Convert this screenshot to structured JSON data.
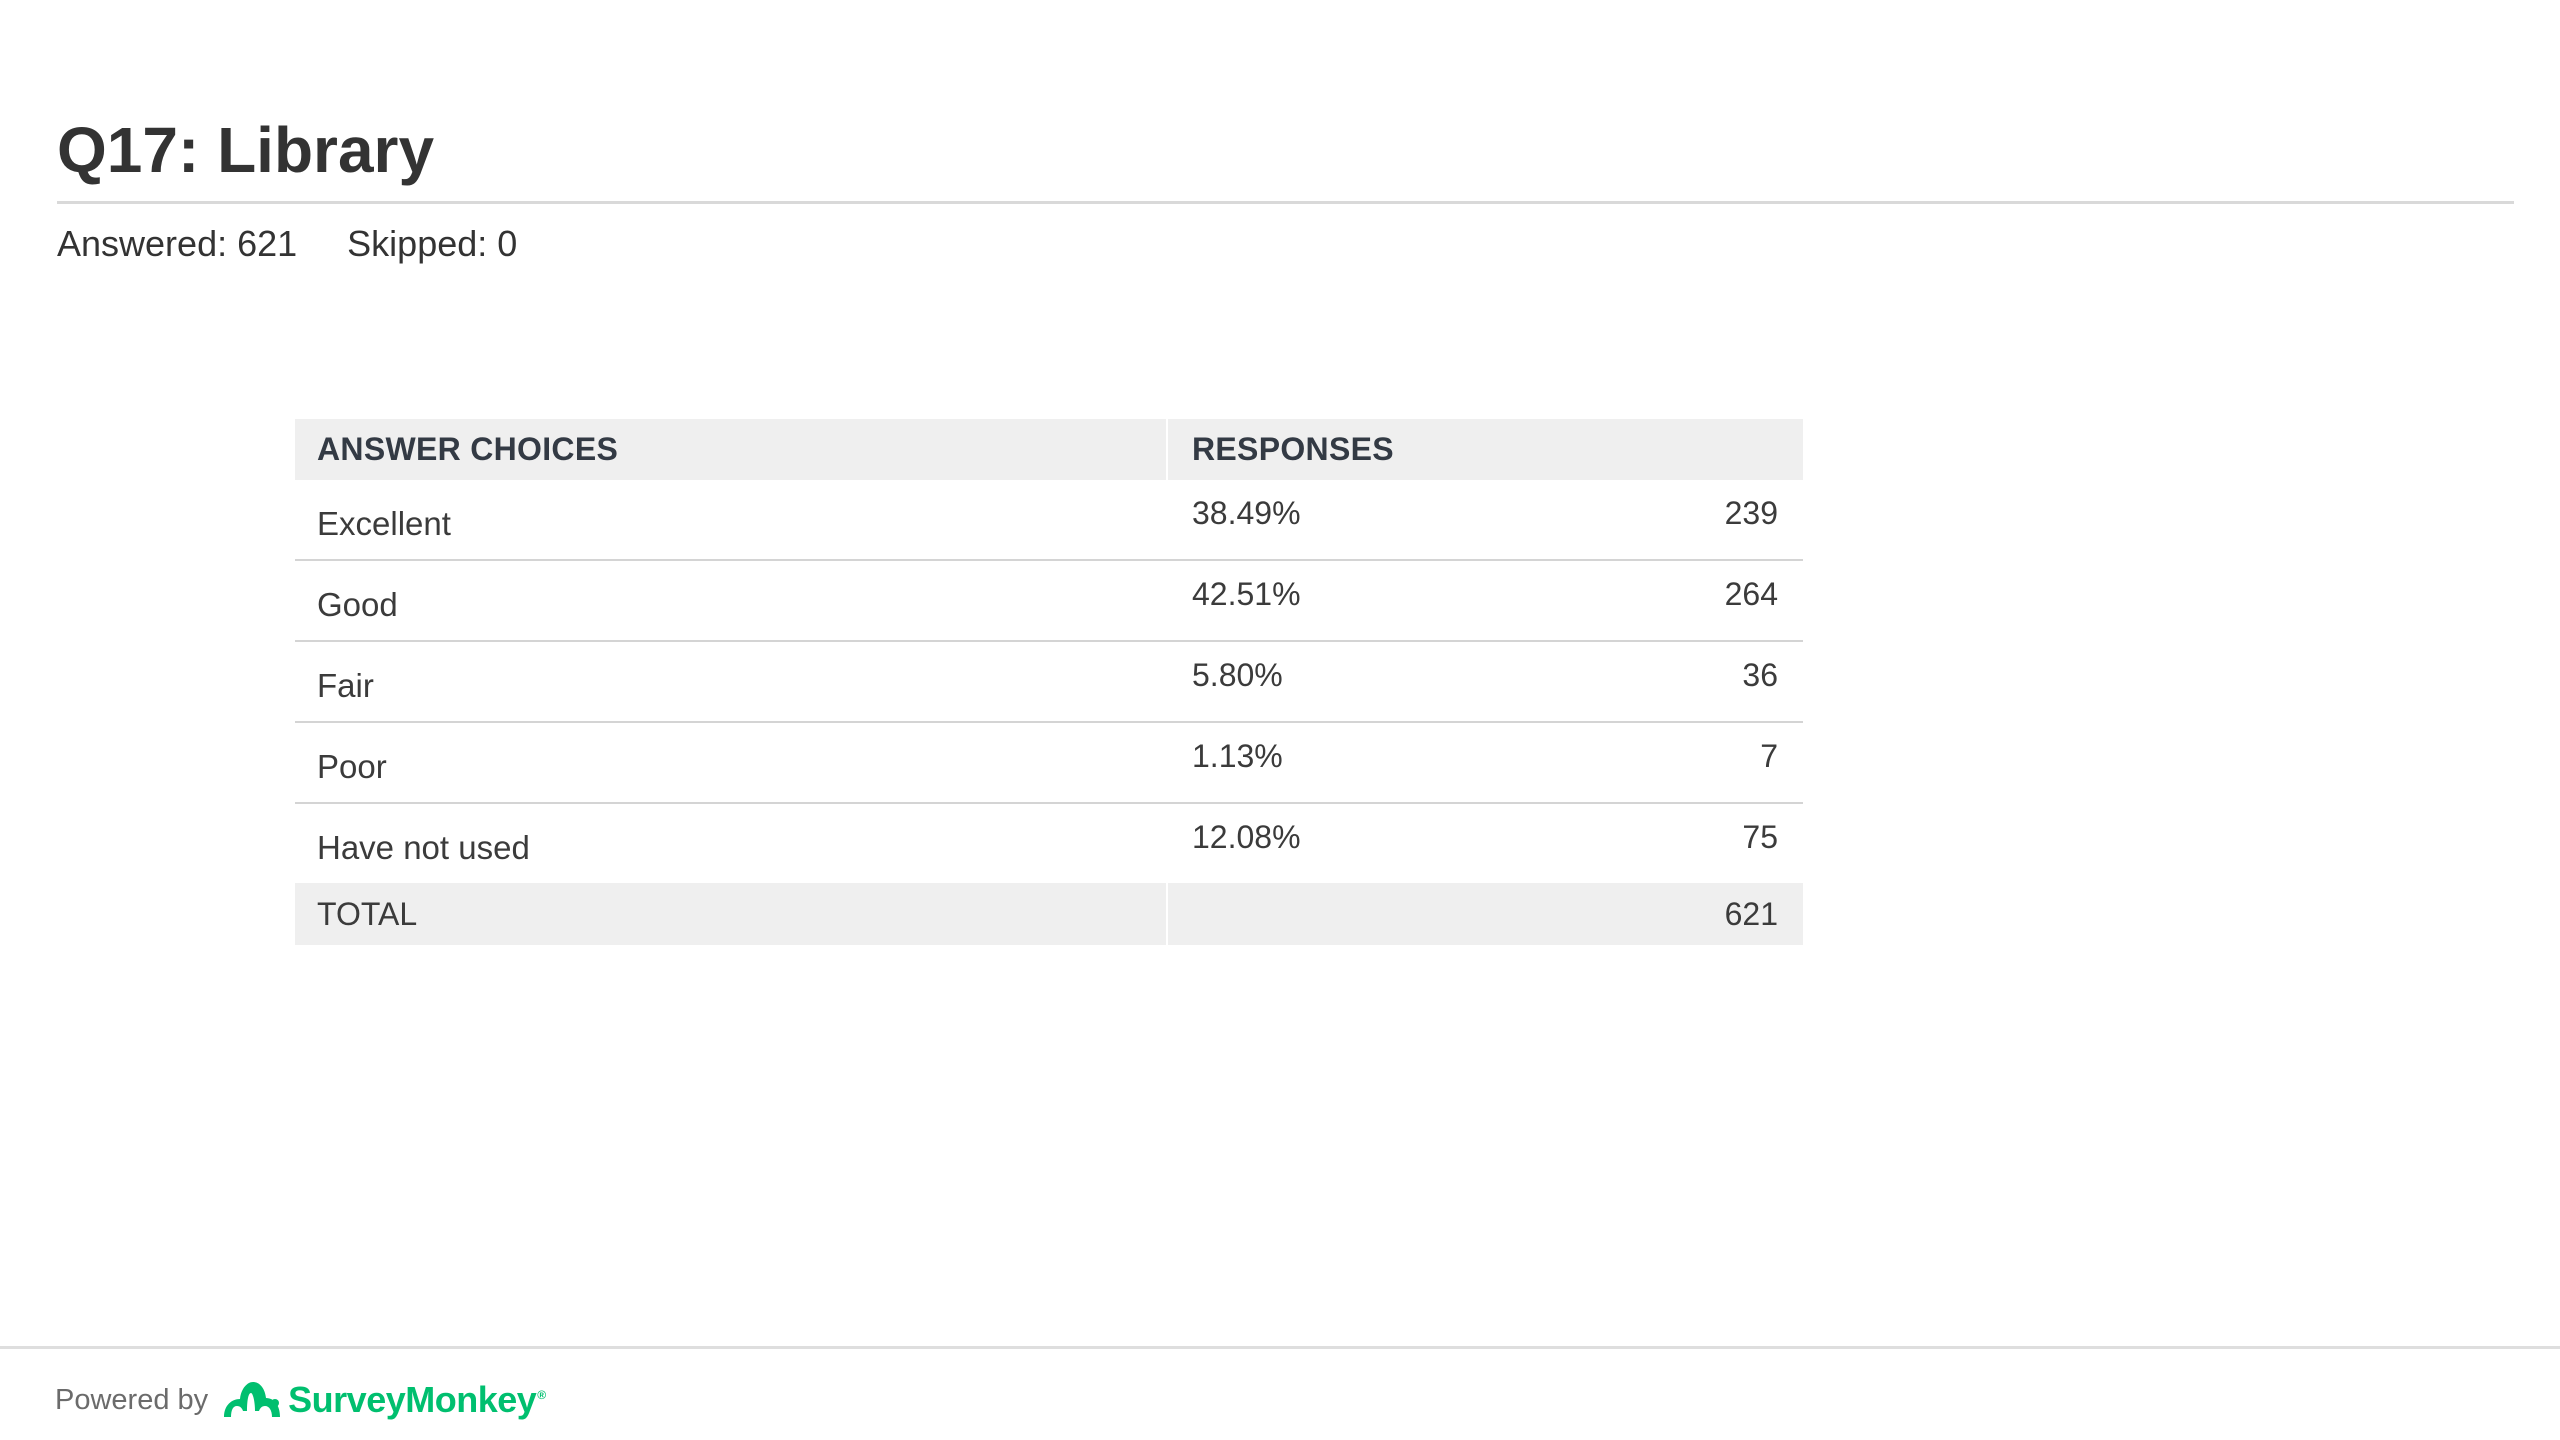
{
  "question": {
    "title": "Q17: Library",
    "answered": "Answered: 621",
    "skipped": "Skipped: 0"
  },
  "chart_data": {
    "type": "table",
    "columns": [
      "ANSWER CHOICES",
      "RESPONSES"
    ],
    "rows": [
      {
        "label": "Excellent",
        "percent": "38.49%",
        "count": "239"
      },
      {
        "label": "Good",
        "percent": "42.51%",
        "count": "264"
      },
      {
        "label": "Fair",
        "percent": "5.80%",
        "count": "36"
      },
      {
        "label": "Poor",
        "percent": "1.13%",
        "count": "7"
      },
      {
        "label": "Have not used",
        "percent": "12.08%",
        "count": "75"
      }
    ],
    "total": {
      "label": "TOTAL",
      "count": "621"
    }
  },
  "footer": {
    "powered_by": "Powered by",
    "brand": "SurveyMonkey",
    "brand_mark": "®",
    "logo_icon": "surveymonkey-logo-icon",
    "brand_color": "#00bf6f"
  }
}
